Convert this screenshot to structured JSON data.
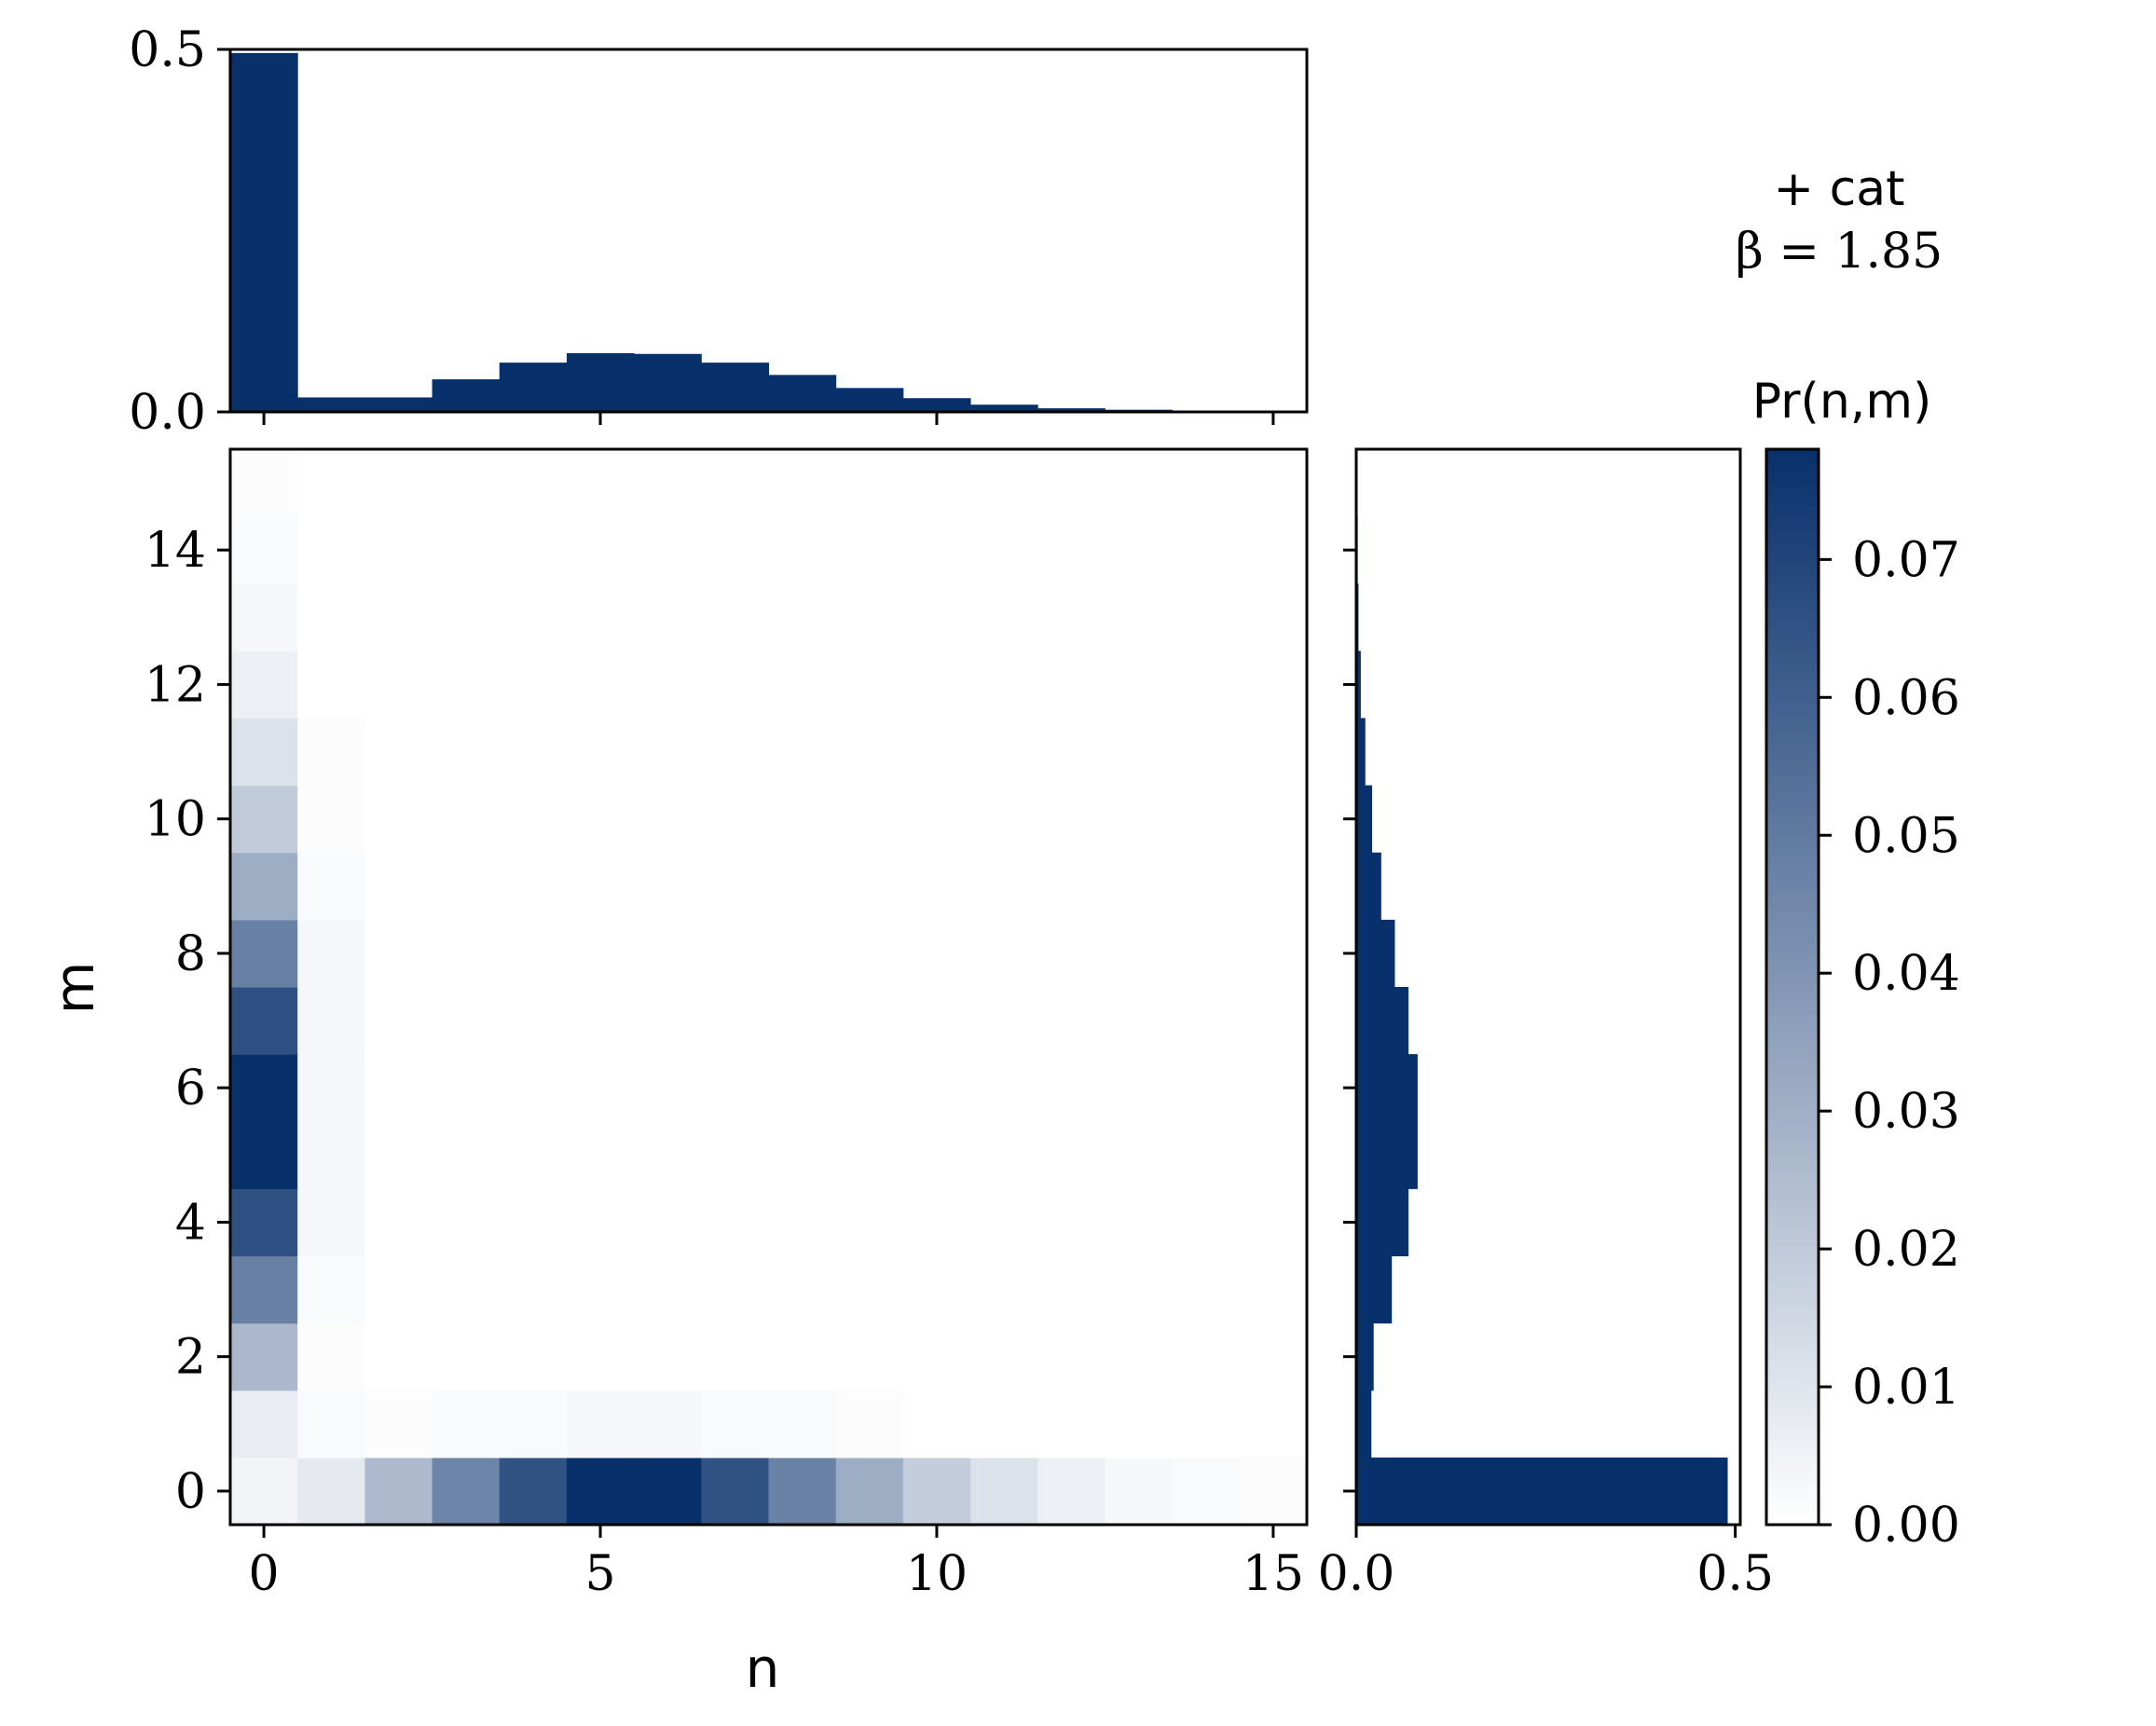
{
  "chart_data": {
    "type": "heatmap",
    "annotation": {
      "label": "+ cat",
      "beta": "β = 1.85"
    },
    "xlabel": "n",
    "ylabel": "m",
    "colorbar_label": "Pr(n,m)",
    "colormap": {
      "low": "#ffffff",
      "high": "#08306b"
    },
    "bar_color": "#08306b",
    "vmin": 0.0,
    "vmax": 0.078,
    "heatmap": {
      "xlim": [
        -0.5,
        15.5
      ],
      "ylim": [
        -0.5,
        15.5
      ],
      "xticks": [
        0,
        5,
        10,
        15
      ],
      "xtick_labels": [
        "0",
        "5",
        "10",
        "15"
      ],
      "yticks": [
        0,
        2,
        4,
        6,
        8,
        10,
        12,
        14
      ],
      "ytick_labels": [
        "0",
        "2",
        "4",
        "6",
        "8",
        "10",
        "12",
        "14"
      ],
      "rows_m0_to_m15": [
        [
          0.004,
          0.008,
          0.026,
          0.046,
          0.065,
          0.078,
          0.078,
          0.065,
          0.047,
          0.031,
          0.019,
          0.011,
          0.006,
          0.003,
          0.002,
          0.001
        ],
        [
          0.007,
          0.002,
          0.001,
          0.002,
          0.002,
          0.003,
          0.003,
          0.002,
          0.002,
          0.001,
          0.0,
          0.0,
          0.0,
          0.0,
          0.0,
          0.0
        ],
        [
          0.027,
          0.001,
          0.0,
          0.0,
          0.0,
          0.0,
          0.0,
          0.0,
          0.0,
          0.0,
          0.0,
          0.0,
          0.0,
          0.0,
          0.0,
          0.0
        ],
        [
          0.048,
          0.002,
          0.0,
          0.0,
          0.0,
          0.0,
          0.0,
          0.0,
          0.0,
          0.0,
          0.0,
          0.0,
          0.0,
          0.0,
          0.0,
          0.0
        ],
        [
          0.066,
          0.003,
          0.0,
          0.0,
          0.0,
          0.0,
          0.0,
          0.0,
          0.0,
          0.0,
          0.0,
          0.0,
          0.0,
          0.0,
          0.0,
          0.0
        ],
        [
          0.078,
          0.003,
          0.0,
          0.0,
          0.0,
          0.0,
          0.0,
          0.0,
          0.0,
          0.0,
          0.0,
          0.0,
          0.0,
          0.0,
          0.0,
          0.0
        ],
        [
          0.078,
          0.003,
          0.0,
          0.0,
          0.0,
          0.0,
          0.0,
          0.0,
          0.0,
          0.0,
          0.0,
          0.0,
          0.0,
          0.0,
          0.0,
          0.0
        ],
        [
          0.066,
          0.003,
          0.0,
          0.0,
          0.0,
          0.0,
          0.0,
          0.0,
          0.0,
          0.0,
          0.0,
          0.0,
          0.0,
          0.0,
          0.0,
          0.0
        ],
        [
          0.048,
          0.003,
          0.0,
          0.0,
          0.0,
          0.0,
          0.0,
          0.0,
          0.0,
          0.0,
          0.0,
          0.0,
          0.0,
          0.0,
          0.0,
          0.0
        ],
        [
          0.031,
          0.002,
          0.0,
          0.0,
          0.0,
          0.0,
          0.0,
          0.0,
          0.0,
          0.0,
          0.0,
          0.0,
          0.0,
          0.0,
          0.0,
          0.0
        ],
        [
          0.02,
          0.001,
          0.0,
          0.0,
          0.0,
          0.0,
          0.0,
          0.0,
          0.0,
          0.0,
          0.0,
          0.0,
          0.0,
          0.0,
          0.0,
          0.0
        ],
        [
          0.011,
          0.001,
          0.0,
          0.0,
          0.0,
          0.0,
          0.0,
          0.0,
          0.0,
          0.0,
          0.0,
          0.0,
          0.0,
          0.0,
          0.0,
          0.0
        ],
        [
          0.006,
          0.0,
          0.0,
          0.0,
          0.0,
          0.0,
          0.0,
          0.0,
          0.0,
          0.0,
          0.0,
          0.0,
          0.0,
          0.0,
          0.0,
          0.0
        ],
        [
          0.003,
          0.0,
          0.0,
          0.0,
          0.0,
          0.0,
          0.0,
          0.0,
          0.0,
          0.0,
          0.0,
          0.0,
          0.0,
          0.0,
          0.0,
          0.0
        ],
        [
          0.002,
          0.0,
          0.0,
          0.0,
          0.0,
          0.0,
          0.0,
          0.0,
          0.0,
          0.0,
          0.0,
          0.0,
          0.0,
          0.0,
          0.0,
          0.0
        ],
        [
          0.001,
          0.0,
          0.0,
          0.0,
          0.0,
          0.0,
          0.0,
          0.0,
          0.0,
          0.0,
          0.0,
          0.0,
          0.0,
          0.0,
          0.0,
          0.0
        ]
      ]
    },
    "top_marginal": {
      "type": "bar",
      "x": [
        0,
        1,
        2,
        3,
        4,
        5,
        6,
        7,
        8,
        9,
        10,
        11,
        12,
        13,
        14,
        15
      ],
      "values": [
        0.495,
        0.02,
        0.02,
        0.045,
        0.068,
        0.081,
        0.08,
        0.068,
        0.051,
        0.033,
        0.019,
        0.01,
        0.005,
        0.003,
        0.001,
        0.001
      ],
      "ylim": [
        0,
        0.5
      ],
      "yticks": [
        0.0,
        0.5
      ],
      "ytick_labels": [
        "0.0",
        "0.5"
      ]
    },
    "right_marginal": {
      "type": "bar",
      "y": [
        0,
        1,
        2,
        3,
        4,
        5,
        6,
        7,
        8,
        9,
        10,
        11,
        12,
        13,
        14,
        15
      ],
      "values": [
        0.49,
        0.02,
        0.023,
        0.047,
        0.069,
        0.081,
        0.081,
        0.069,
        0.051,
        0.033,
        0.021,
        0.012,
        0.006,
        0.003,
        0.002,
        0.001
      ],
      "xlim": [
        0,
        0.5
      ],
      "xticks": [
        0.0,
        0.5
      ],
      "xtick_labels": [
        "0.0",
        "0.5"
      ]
    },
    "colorbar": {
      "ticks": [
        0.0,
        0.01,
        0.02,
        0.03,
        0.04,
        0.05,
        0.06,
        0.07
      ],
      "tick_labels": [
        "0.00",
        "0.01",
        "0.02",
        "0.03",
        "0.04",
        "0.05",
        "0.06",
        "0.07"
      ]
    }
  }
}
